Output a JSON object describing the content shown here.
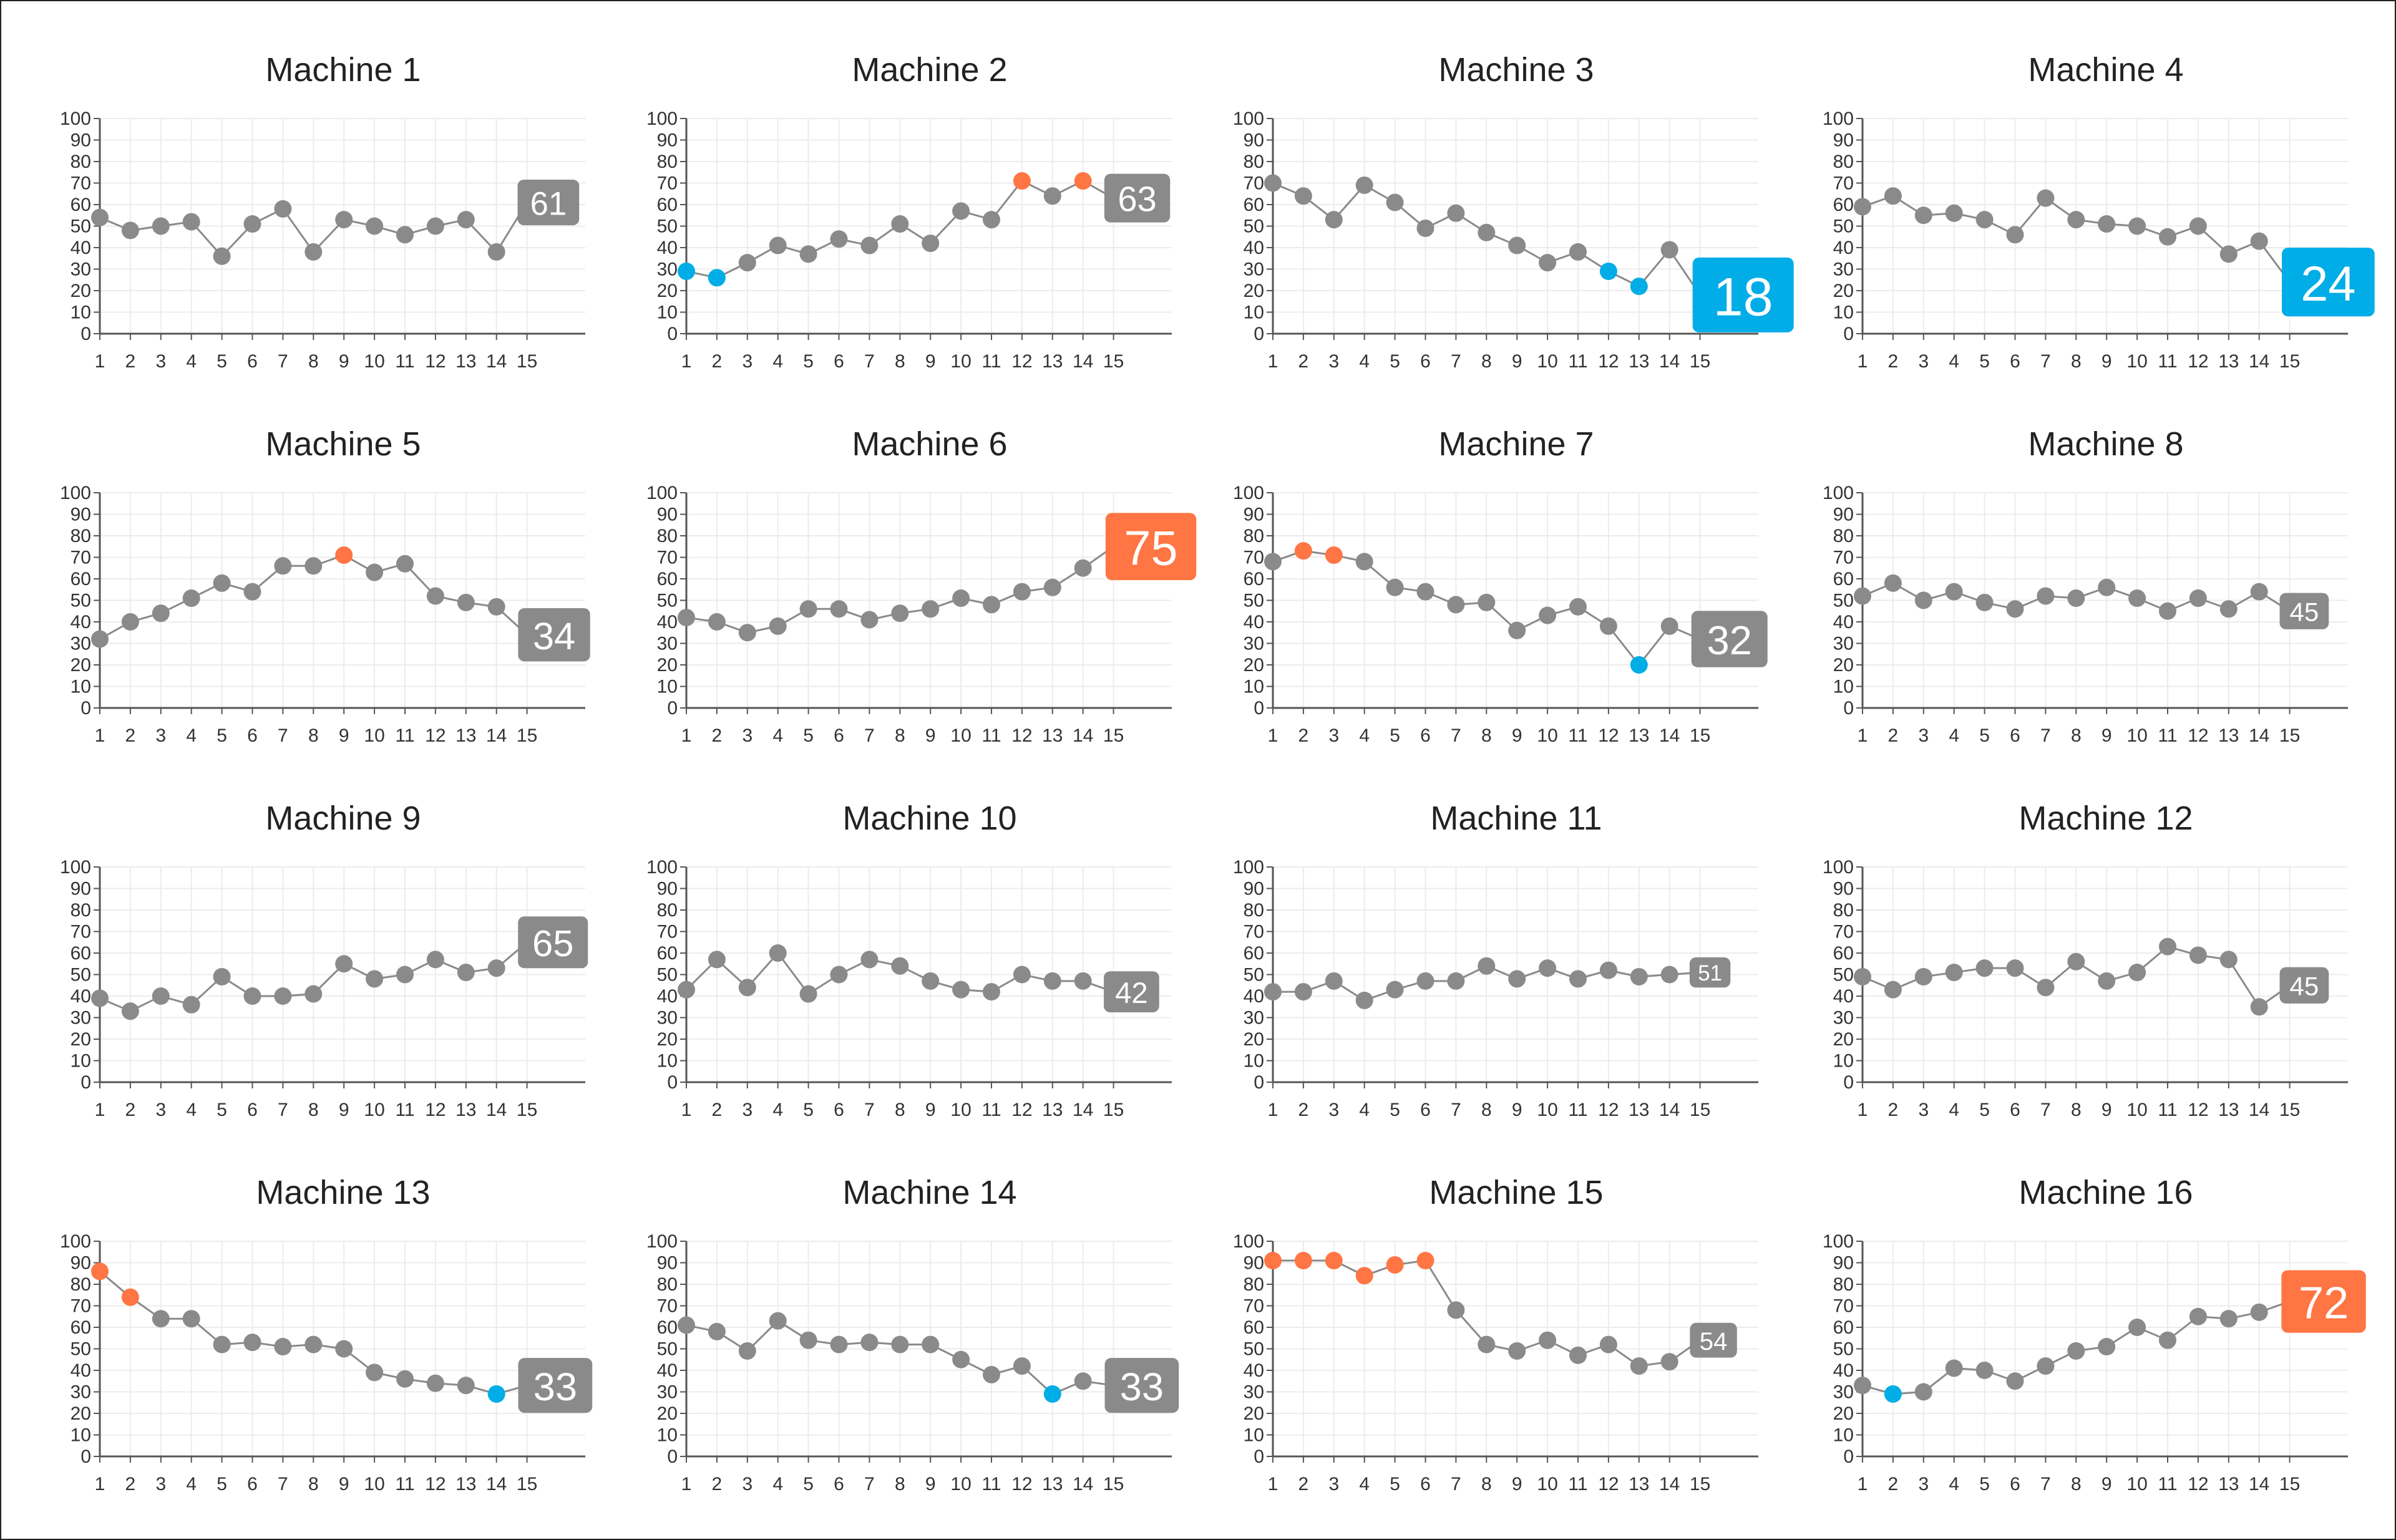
{
  "colors": {
    "normal": "#8a8a8a",
    "high": "#ff7543",
    "low": "#00ade6",
    "line": "#8a8a8a",
    "grid": "#ececec",
    "axis": "#555555",
    "text": "#222222",
    "tick": "#333333"
  },
  "chart_data": [
    {
      "type": "line",
      "title": "Machine 1",
      "x": [
        1,
        2,
        3,
        4,
        5,
        6,
        7,
        8,
        9,
        10,
        11,
        12,
        13,
        14,
        15
      ],
      "y": [
        54,
        48,
        50,
        52,
        36,
        51,
        58,
        38,
        53,
        50,
        46,
        50,
        53,
        38,
        61
      ],
      "highs": [],
      "lows": [],
      "last_status": "normal",
      "last_label": "61",
      "ylim": [
        0,
        100
      ],
      "yticks": [
        0,
        10,
        20,
        30,
        40,
        50,
        60,
        70,
        80,
        90,
        100
      ]
    },
    {
      "type": "line",
      "title": "Machine 2",
      "x": [
        1,
        2,
        3,
        4,
        5,
        6,
        7,
        8,
        9,
        10,
        11,
        12,
        13,
        14,
        15
      ],
      "y": [
        29,
        26,
        33,
        41,
        37,
        44,
        41,
        51,
        42,
        57,
        53,
        71,
        64,
        71,
        63
      ],
      "highs": [
        12,
        14
      ],
      "lows": [
        1,
        2
      ],
      "last_status": "normal",
      "last_label": "63",
      "ylim": [
        0,
        100
      ],
      "yticks": [
        0,
        10,
        20,
        30,
        40,
        50,
        60,
        70,
        80,
        90,
        100
      ]
    },
    {
      "type": "line",
      "title": "Machine 3",
      "x": [
        1,
        2,
        3,
        4,
        5,
        6,
        7,
        8,
        9,
        10,
        11,
        12,
        13,
        14,
        15
      ],
      "y": [
        70,
        64,
        53,
        69,
        61,
        49,
        56,
        47,
        41,
        33,
        38,
        29,
        22,
        39,
        18
      ],
      "highs": [],
      "lows": [
        12,
        13
      ],
      "last_status": "low",
      "last_label": "18",
      "ylim": [
        0,
        100
      ],
      "yticks": [
        0,
        10,
        20,
        30,
        40,
        50,
        60,
        70,
        80,
        90,
        100
      ]
    },
    {
      "type": "line",
      "title": "Machine 4",
      "x": [
        1,
        2,
        3,
        4,
        5,
        6,
        7,
        8,
        9,
        10,
        11,
        12,
        13,
        14,
        15
      ],
      "y": [
        59,
        64,
        55,
        56,
        53,
        46,
        63,
        53,
        51,
        50,
        45,
        50,
        37,
        43,
        24
      ],
      "highs": [],
      "lows": [],
      "last_status": "low",
      "last_label": "24",
      "ylim": [
        0,
        100
      ],
      "yticks": [
        0,
        10,
        20,
        30,
        40,
        50,
        60,
        70,
        80,
        90,
        100
      ]
    },
    {
      "type": "line",
      "title": "Machine 5",
      "x": [
        1,
        2,
        3,
        4,
        5,
        6,
        7,
        8,
        9,
        10,
        11,
        12,
        13,
        14,
        15
      ],
      "y": [
        32,
        40,
        44,
        51,
        58,
        54,
        66,
        66,
        71,
        63,
        67,
        52,
        49,
        47,
        34
      ],
      "highs": [
        9
      ],
      "lows": [],
      "last_status": "normal",
      "last_label": "34",
      "ylim": [
        0,
        100
      ],
      "yticks": [
        0,
        10,
        20,
        30,
        40,
        50,
        60,
        70,
        80,
        90,
        100
      ]
    },
    {
      "type": "line",
      "title": "Machine 6",
      "x": [
        1,
        2,
        3,
        4,
        5,
        6,
        7,
        8,
        9,
        10,
        11,
        12,
        13,
        14,
        15
      ],
      "y": [
        42,
        40,
        35,
        38,
        46,
        46,
        41,
        44,
        46,
        51,
        48,
        54,
        56,
        65,
        75
      ],
      "highs": [],
      "lows": [],
      "last_status": "high",
      "last_label": "75",
      "ylim": [
        0,
        100
      ],
      "yticks": [
        0,
        10,
        20,
        30,
        40,
        50,
        60,
        70,
        80,
        90,
        100
      ]
    },
    {
      "type": "line",
      "title": "Machine 7",
      "x": [
        1,
        2,
        3,
        4,
        5,
        6,
        7,
        8,
        9,
        10,
        11,
        12,
        13,
        14,
        15
      ],
      "y": [
        68,
        73,
        71,
        68,
        56,
        54,
        48,
        49,
        36,
        43,
        47,
        38,
        20,
        38,
        32
      ],
      "highs": [
        2,
        3
      ],
      "lows": [
        13
      ],
      "last_status": "normal",
      "last_label": "32",
      "ylim": [
        0,
        100
      ],
      "yticks": [
        0,
        10,
        20,
        30,
        40,
        50,
        60,
        70,
        80,
        90,
        100
      ]
    },
    {
      "type": "line",
      "title": "Machine 8",
      "x": [
        1,
        2,
        3,
        4,
        5,
        6,
        7,
        8,
        9,
        10,
        11,
        12,
        13,
        14,
        15
      ],
      "y": [
        52,
        58,
        50,
        54,
        49,
        46,
        52,
        51,
        56,
        51,
        45,
        51,
        46,
        54,
        45
      ],
      "highs": [],
      "lows": [],
      "last_status": "normal",
      "last_label": "45",
      "ylim": [
        0,
        100
      ],
      "yticks": [
        0,
        10,
        20,
        30,
        40,
        50,
        60,
        70,
        80,
        90,
        100
      ]
    },
    {
      "type": "line",
      "title": "Machine 9",
      "x": [
        1,
        2,
        3,
        4,
        5,
        6,
        7,
        8,
        9,
        10,
        11,
        12,
        13,
        14,
        15
      ],
      "y": [
        39,
        33,
        40,
        36,
        49,
        40,
        40,
        41,
        55,
        48,
        50,
        57,
        51,
        53,
        65
      ],
      "highs": [],
      "lows": [],
      "last_status": "normal",
      "last_label": "65",
      "ylim": [
        0,
        100
      ],
      "yticks": [
        0,
        10,
        20,
        30,
        40,
        50,
        60,
        70,
        80,
        90,
        100
      ]
    },
    {
      "type": "line",
      "title": "Machine 10",
      "x": [
        1,
        2,
        3,
        4,
        5,
        6,
        7,
        8,
        9,
        10,
        11,
        12,
        13,
        14,
        15
      ],
      "y": [
        43,
        57,
        44,
        60,
        41,
        50,
        57,
        54,
        47,
        43,
        42,
        50,
        47,
        47,
        42
      ],
      "highs": [],
      "lows": [],
      "last_status": "normal",
      "last_label": "42",
      "ylim": [
        0,
        100
      ],
      "yticks": [
        0,
        10,
        20,
        30,
        40,
        50,
        60,
        70,
        80,
        90,
        100
      ]
    },
    {
      "type": "line",
      "title": "Machine 11",
      "x": [
        1,
        2,
        3,
        4,
        5,
        6,
        7,
        8,
        9,
        10,
        11,
        12,
        13,
        14,
        15
      ],
      "y": [
        42,
        42,
        47,
        38,
        43,
        47,
        47,
        54,
        48,
        53,
        48,
        52,
        49,
        50,
        51
      ],
      "highs": [],
      "lows": [],
      "last_status": "normal",
      "last_label": "51",
      "ylim": [
        0,
        100
      ],
      "yticks": [
        0,
        10,
        20,
        30,
        40,
        50,
        60,
        70,
        80,
        90,
        100
      ]
    },
    {
      "type": "line",
      "title": "Machine 12",
      "x": [
        1,
        2,
        3,
        4,
        5,
        6,
        7,
        8,
        9,
        10,
        11,
        12,
        13,
        14,
        15
      ],
      "y": [
        49,
        43,
        49,
        51,
        53,
        53,
        44,
        56,
        47,
        51,
        63,
        59,
        57,
        35,
        45
      ],
      "highs": [],
      "lows": [],
      "last_status": "normal",
      "last_label": "45",
      "ylim": [
        0,
        100
      ],
      "yticks": [
        0,
        10,
        20,
        30,
        40,
        50,
        60,
        70,
        80,
        90,
        100
      ]
    },
    {
      "type": "line",
      "title": "Machine 13",
      "x": [
        1,
        2,
        3,
        4,
        5,
        6,
        7,
        8,
        9,
        10,
        11,
        12,
        13,
        14,
        15
      ],
      "y": [
        86,
        74,
        64,
        64,
        52,
        53,
        51,
        52,
        50,
        39,
        36,
        34,
        33,
        29,
        33
      ],
      "highs": [
        1,
        2
      ],
      "lows": [
        14
      ],
      "last_status": "normal",
      "last_label": "33",
      "ylim": [
        0,
        100
      ],
      "yticks": [
        0,
        10,
        20,
        30,
        40,
        50,
        60,
        70,
        80,
        90,
        100
      ]
    },
    {
      "type": "line",
      "title": "Machine 14",
      "x": [
        1,
        2,
        3,
        4,
        5,
        6,
        7,
        8,
        9,
        10,
        11,
        12,
        13,
        14,
        15
      ],
      "y": [
        61,
        58,
        49,
        63,
        54,
        52,
        53,
        52,
        52,
        45,
        38,
        42,
        29,
        35,
        33
      ],
      "highs": [],
      "lows": [
        13
      ],
      "last_status": "normal",
      "last_label": "33",
      "ylim": [
        0,
        100
      ],
      "yticks": [
        0,
        10,
        20,
        30,
        40,
        50,
        60,
        70,
        80,
        90,
        100
      ]
    },
    {
      "type": "line",
      "title": "Machine 15",
      "x": [
        1,
        2,
        3,
        4,
        5,
        6,
        7,
        8,
        9,
        10,
        11,
        12,
        13,
        14,
        15
      ],
      "y": [
        91,
        91,
        91,
        84,
        89,
        91,
        68,
        52,
        49,
        54,
        47,
        52,
        42,
        44,
        54
      ],
      "highs": [
        1,
        2,
        3,
        4,
        5,
        6
      ],
      "lows": [],
      "last_status": "normal",
      "last_label": "54",
      "ylim": [
        0,
        100
      ],
      "yticks": [
        0,
        10,
        20,
        30,
        40,
        50,
        60,
        70,
        80,
        90,
        100
      ]
    },
    {
      "type": "line",
      "title": "Machine 16",
      "x": [
        1,
        2,
        3,
        4,
        5,
        6,
        7,
        8,
        9,
        10,
        11,
        12,
        13,
        14,
        15
      ],
      "y": [
        33,
        29,
        30,
        41,
        40,
        35,
        42,
        49,
        51,
        60,
        54,
        65,
        64,
        67,
        72
      ],
      "highs": [],
      "lows": [
        2
      ],
      "last_status": "high",
      "last_label": "72",
      "ylim": [
        0,
        100
      ],
      "yticks": [
        0,
        10,
        20,
        30,
        40,
        50,
        60,
        70,
        80,
        90,
        100
      ]
    }
  ]
}
